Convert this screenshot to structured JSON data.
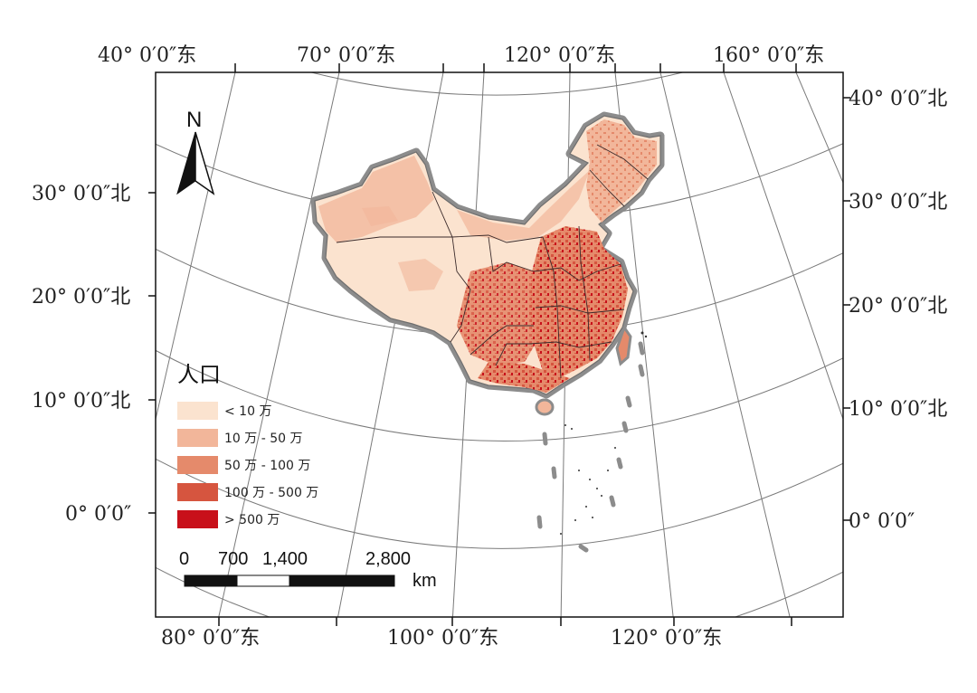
{
  "map": {
    "top_labels": [
      "40° 0′0″东",
      "70° 0′0″东",
      "120° 0′0″东",
      "160° 0′0″东"
    ],
    "bottom_labels": [
      "80° 0′0″东",
      "100° 0′0″东",
      "120° 0′0″东"
    ],
    "left_labels": [
      "30° 0′0″北",
      "20° 0′0″北",
      "10° 0′0″北",
      "0° 0′0″"
    ],
    "right_labels": [
      "40° 0′0″北",
      "30° 0′0″北",
      "20° 0′0″北",
      "10° 0′0″北",
      "0° 0′0″"
    ],
    "north_arrow": {
      "label": "N",
      "icon": "north-arrow-icon"
    },
    "legend": {
      "title": "人口",
      "items": [
        {
          "label": "< 10 万",
          "color": "#fbe3cf"
        },
        {
          "label": "10 万 - 50 万",
          "color": "#f2b69a"
        },
        {
          "label": "50 万 - 100 万",
          "color": "#e58a6b"
        },
        {
          "label": "100 万 - 500 万",
          "color": "#d6553f"
        },
        {
          "label": "> 500 万",
          "color": "#c8101a"
        }
      ]
    },
    "scale_bar": {
      "ticks": [
        "0",
        "700",
        "1,400",
        "2,800"
      ],
      "unit": "km"
    },
    "colors": {
      "boundary": "#8c8c8c",
      "graticule": "#7a7a7a",
      "frame": "#111111"
    }
  }
}
